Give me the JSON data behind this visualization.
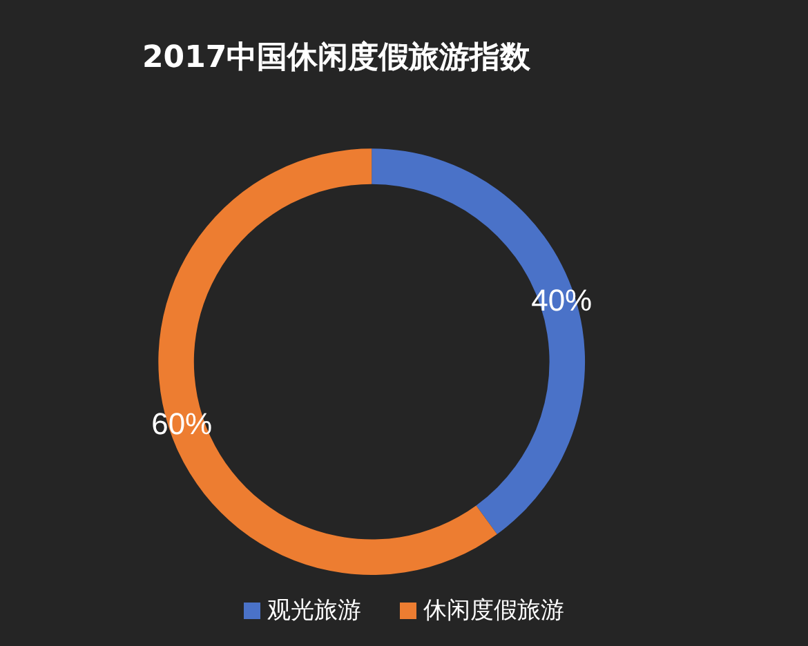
{
  "chart_data": {
    "type": "donut",
    "title": "2017中国休闲度假旅游指数",
    "categories": [
      "观光旅游",
      "休闲度假旅游"
    ],
    "values": [
      40,
      60
    ],
    "colors": [
      "#4a72c8",
      "#ed7d31"
    ],
    "value_labels": [
      "40%",
      "60%"
    ],
    "legend": "bottom"
  }
}
